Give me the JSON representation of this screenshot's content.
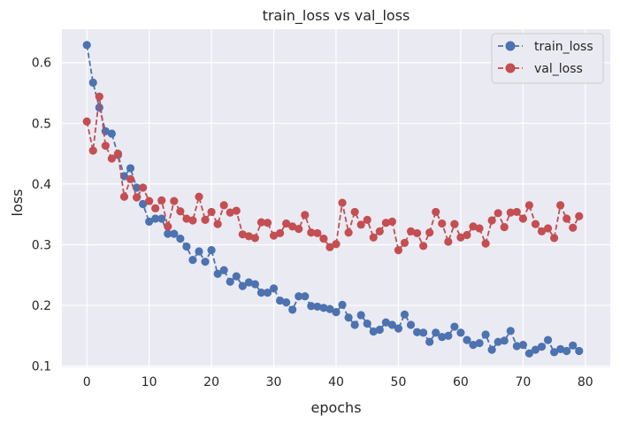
{
  "chart_data": {
    "type": "line",
    "title": "train_loss vs val_loss",
    "xlabel": "epochs",
    "ylabel": "loss",
    "xlim": [
      -4,
      84
    ],
    "ylim": [
      0.098,
      0.655
    ],
    "xticks": [
      0,
      10,
      20,
      30,
      40,
      50,
      60,
      70,
      80
    ],
    "yticks": [
      0.1,
      0.2,
      0.3,
      0.4,
      0.5,
      0.6
    ],
    "grid": true,
    "legend_position": "top-right",
    "x": [
      0,
      1,
      2,
      3,
      4,
      5,
      6,
      7,
      8,
      9,
      10,
      11,
      12,
      13,
      14,
      15,
      16,
      17,
      18,
      19,
      20,
      21,
      22,
      23,
      24,
      25,
      26,
      27,
      28,
      29,
      30,
      31,
      32,
      33,
      34,
      35,
      36,
      37,
      38,
      39,
      40,
      41,
      42,
      43,
      44,
      45,
      46,
      47,
      48,
      49,
      50,
      51,
      52,
      53,
      54,
      55,
      56,
      57,
      58,
      59,
      60,
      61,
      62,
      63,
      64,
      65,
      66,
      67,
      68,
      69,
      70,
      71,
      72,
      73,
      74,
      75,
      76,
      77,
      78,
      79
    ],
    "series": [
      {
        "name": "train_loss",
        "color": "#4c72b0",
        "values": [
          0.629,
          0.567,
          0.526,
          0.487,
          0.483,
          0.448,
          0.413,
          0.426,
          0.394,
          0.367,
          0.338,
          0.343,
          0.343,
          0.318,
          0.318,
          0.31,
          0.297,
          0.275,
          0.289,
          0.272,
          0.291,
          0.252,
          0.258,
          0.239,
          0.248,
          0.232,
          0.238,
          0.235,
          0.221,
          0.221,
          0.228,
          0.208,
          0.205,
          0.193,
          0.215,
          0.215,
          0.199,
          0.198,
          0.196,
          0.194,
          0.189,
          0.201,
          0.18,
          0.168,
          0.184,
          0.17,
          0.157,
          0.16,
          0.172,
          0.168,
          0.162,
          0.185,
          0.168,
          0.156,
          0.155,
          0.14,
          0.155,
          0.148,
          0.15,
          0.165,
          0.155,
          0.143,
          0.135,
          0.138,
          0.152,
          0.127,
          0.14,
          0.142,
          0.158,
          0.133,
          0.135,
          0.121,
          0.127,
          0.132,
          0.143,
          0.123,
          0.128,
          0.125,
          0.134,
          0.125
        ]
      },
      {
        "name": "val_loss",
        "color": "#c44e52",
        "values": [
          0.503,
          0.455,
          0.544,
          0.463,
          0.442,
          0.45,
          0.379,
          0.408,
          0.378,
          0.394,
          0.372,
          0.36,
          0.373,
          0.33,
          0.372,
          0.355,
          0.343,
          0.34,
          0.379,
          0.341,
          0.354,
          0.334,
          0.365,
          0.353,
          0.356,
          0.317,
          0.314,
          0.311,
          0.337,
          0.336,
          0.315,
          0.319,
          0.335,
          0.33,
          0.326,
          0.349,
          0.32,
          0.319,
          0.31,
          0.296,
          0.301,
          0.369,
          0.32,
          0.354,
          0.333,
          0.341,
          0.312,
          0.322,
          0.336,
          0.338,
          0.291,
          0.303,
          0.322,
          0.319,
          0.298,
          0.32,
          0.354,
          0.335,
          0.305,
          0.334,
          0.312,
          0.316,
          0.33,
          0.327,
          0.302,
          0.34,
          0.352,
          0.329,
          0.353,
          0.354,
          0.343,
          0.365,
          0.334,
          0.322,
          0.327,
          0.311,
          0.365,
          0.343,
          0.328,
          0.347
        ]
      }
    ]
  }
}
